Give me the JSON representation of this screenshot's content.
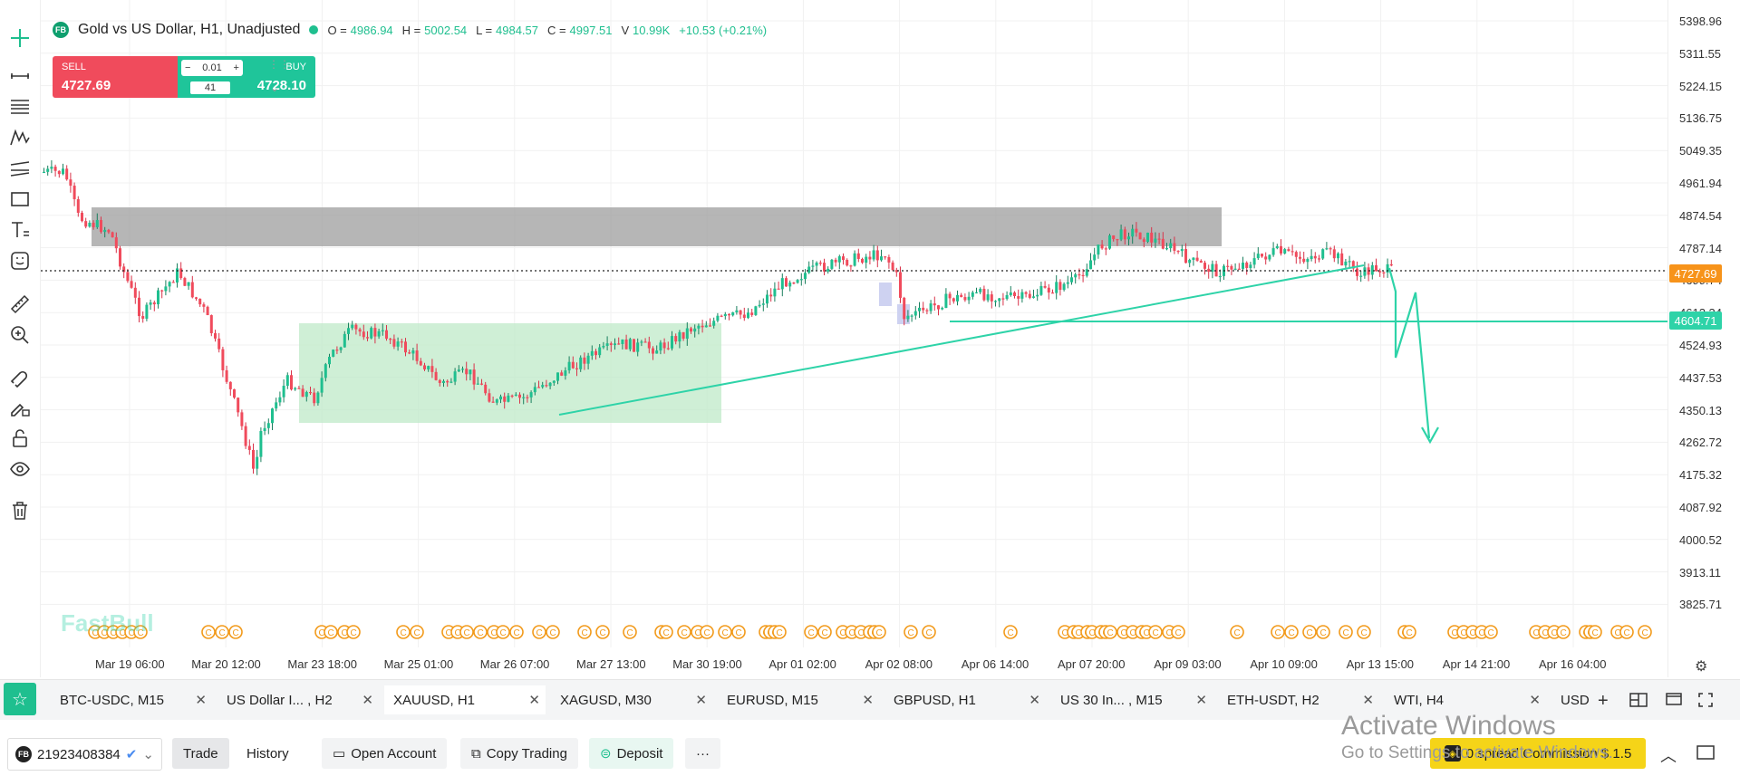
{
  "legend": {
    "symbol_title": "Gold vs US Dollar, H1, Unadjusted",
    "o_key": "O =",
    "o_val": "4986.94",
    "h_key": "H =",
    "h_val": "5002.54",
    "l_key": "L =",
    "l_val": "4984.57",
    "c_key": "C =",
    "c_val": "4997.51",
    "v_key": "V",
    "v_val": "10.99K",
    "change": "+10.53 (+0.21%)",
    "logo_text": "FB"
  },
  "trade_widget": {
    "sell_label": "SELL",
    "sell_price": "4727.69",
    "buy_label": "BUY",
    "buy_price": "4728.10",
    "quantity": "0.01",
    "spread": "41"
  },
  "price_axis": [
    "5398.96",
    "5311.55",
    "5224.15",
    "5136.75",
    "5049.35",
    "4961.94",
    "4874.54",
    "4787.14",
    "4699.74",
    "4612.34",
    "4524.93",
    "4437.53",
    "4350.13",
    "4262.72",
    "4175.32",
    "4087.92",
    "4000.52",
    "3913.11",
    "3825.71"
  ],
  "current_price_tag": "4727.69",
  "level_tag": "4604.71",
  "time_axis": [
    "Mar 19 06:00",
    "Mar 20 12:00",
    "Mar 23 18:00",
    "Mar 25 01:00",
    "Mar 26 07:00",
    "Mar 27 13:00",
    "Mar 30 19:00",
    "Apr 01 02:00",
    "Apr 02 08:00",
    "Apr 06 14:00",
    "Apr 07 20:00",
    "Apr 09 03:00",
    "Apr 10 09:00",
    "Apr 13 15:00",
    "Apr 14 21:00",
    "Apr 16 04:00"
  ],
  "watermark": "FastBull",
  "tabs": [
    {
      "label": "BTC-USDC, M15"
    },
    {
      "label": "US Dollar I... , H2"
    },
    {
      "label": "XAUUSD, H1"
    },
    {
      "label": "XAGUSD, M30"
    },
    {
      "label": "EURUSD, M15"
    },
    {
      "label": "GBPUSD, H1"
    },
    {
      "label": "US 30 In... , M15"
    },
    {
      "label": "ETH-USDT, H2"
    },
    {
      "label": "WTI, H4"
    },
    {
      "label": "USD"
    }
  ],
  "bottom": {
    "account_id": "21923408384",
    "trade": "Trade",
    "history": "History",
    "open_account": "Open Account",
    "copy_trading": "Copy Trading",
    "deposit": "Deposit",
    "more": "···",
    "promo": "0 spread Commission $ 1.5"
  },
  "activate": {
    "title": "Activate Windows",
    "subtitle": "Go to Settings to activate Windows."
  },
  "colors": {
    "bull": "#1fbf8f",
    "bear": "#f04b5c",
    "resistance_zone": "#9e9e9e",
    "accumulation_zone": "#c8ecd0",
    "trend_line": "#2ed3a8",
    "price_tag": "#f7931a"
  }
}
